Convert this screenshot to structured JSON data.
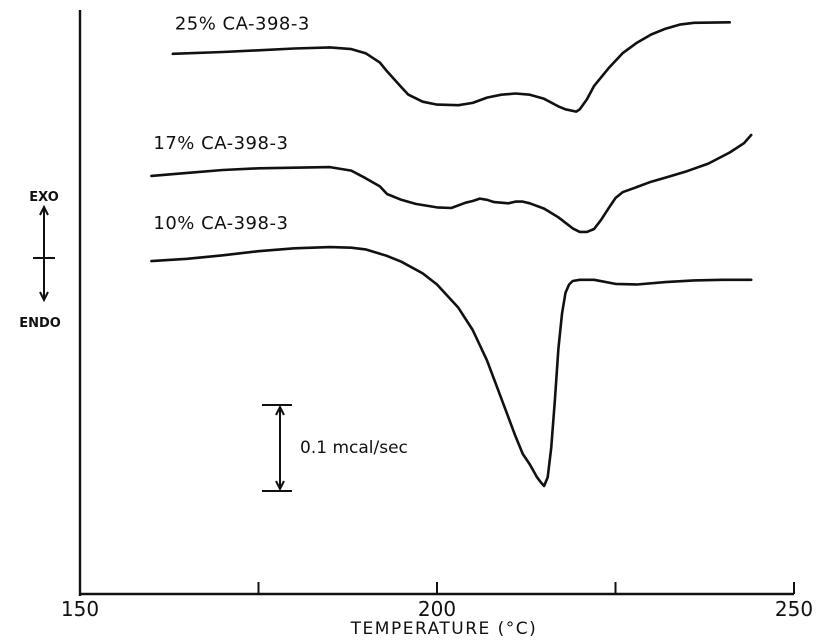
{
  "chart_data": {
    "type": "line",
    "title": "",
    "xlabel": "TEMPERATURE (°C)",
    "ylabel": "",
    "xlim": [
      150,
      250
    ],
    "x_ticks": [
      150,
      200,
      250
    ],
    "x_tick_labels": [
      "150",
      "200",
      "250"
    ],
    "ylim": [
      0,
      1
    ],
    "grid": false,
    "legend": "none",
    "annotations": {
      "exo": "EXO",
      "endo": "ENDO",
      "scale_bar": "0.1 mcal/sec",
      "scale_bar_value": 0.1
    },
    "series": [
      {
        "name": "25% CA-398-3",
        "x": [
          163,
          170,
          175,
          180,
          185,
          188,
          190,
          192,
          193,
          195,
          196,
          198,
          200,
          203,
          205,
          207,
          209,
          211,
          213,
          215,
          217,
          218,
          219.5,
          220,
          221,
          222,
          224,
          226,
          228,
          230,
          232,
          234,
          236,
          241
        ],
        "y": [
          0.925,
          0.928,
          0.931,
          0.934,
          0.936,
          0.933,
          0.926,
          0.91,
          0.895,
          0.868,
          0.855,
          0.843,
          0.838,
          0.837,
          0.841,
          0.85,
          0.855,
          0.857,
          0.855,
          0.848,
          0.835,
          0.83,
          0.826,
          0.83,
          0.847,
          0.87,
          0.9,
          0.926,
          0.944,
          0.958,
          0.968,
          0.975,
          0.978,
          0.979
        ]
      },
      {
        "name": "17% CA-398-3",
        "x": [
          160,
          165,
          170,
          175,
          180,
          185,
          188,
          190,
          192,
          193,
          195,
          197,
          200,
          202,
          204,
          205,
          206,
          207,
          208,
          210,
          211,
          212,
          213,
          215,
          217,
          219,
          220,
          221,
          222,
          223,
          224,
          225,
          226,
          228,
          230,
          232,
          235,
          238,
          241,
          243,
          244
        ],
        "y": [
          0.716,
          0.721,
          0.726,
          0.729,
          0.73,
          0.731,
          0.725,
          0.712,
          0.698,
          0.685,
          0.675,
          0.668,
          0.662,
          0.661,
          0.67,
          0.673,
          0.677,
          0.675,
          0.671,
          0.669,
          0.672,
          0.672,
          0.669,
          0.66,
          0.645,
          0.626,
          0.62,
          0.62,
          0.625,
          0.641,
          0.66,
          0.678,
          0.688,
          0.697,
          0.706,
          0.713,
          0.724,
          0.737,
          0.756,
          0.772,
          0.786
        ]
      },
      {
        "name": "10% CA-398-3",
        "x": [
          160,
          165,
          170,
          175,
          180,
          185,
          188,
          190,
          193,
          195,
          198,
          200,
          203,
          205,
          207,
          209,
          211,
          212,
          213,
          214,
          214.5,
          215,
          215.5,
          216,
          216.5,
          217,
          217.5,
          218,
          218.5,
          219,
          220,
          222,
          225,
          228,
          232,
          236,
          240,
          244
        ],
        "y": [
          0.57,
          0.574,
          0.58,
          0.587,
          0.592,
          0.594,
          0.593,
          0.59,
          0.579,
          0.569,
          0.549,
          0.53,
          0.49,
          0.452,
          0.4,
          0.335,
          0.27,
          0.24,
          0.222,
          0.2,
          0.192,
          0.185,
          0.2,
          0.25,
          0.33,
          0.42,
          0.48,
          0.516,
          0.53,
          0.536,
          0.538,
          0.538,
          0.531,
          0.53,
          0.534,
          0.537,
          0.538,
          0.538
        ]
      }
    ]
  }
}
